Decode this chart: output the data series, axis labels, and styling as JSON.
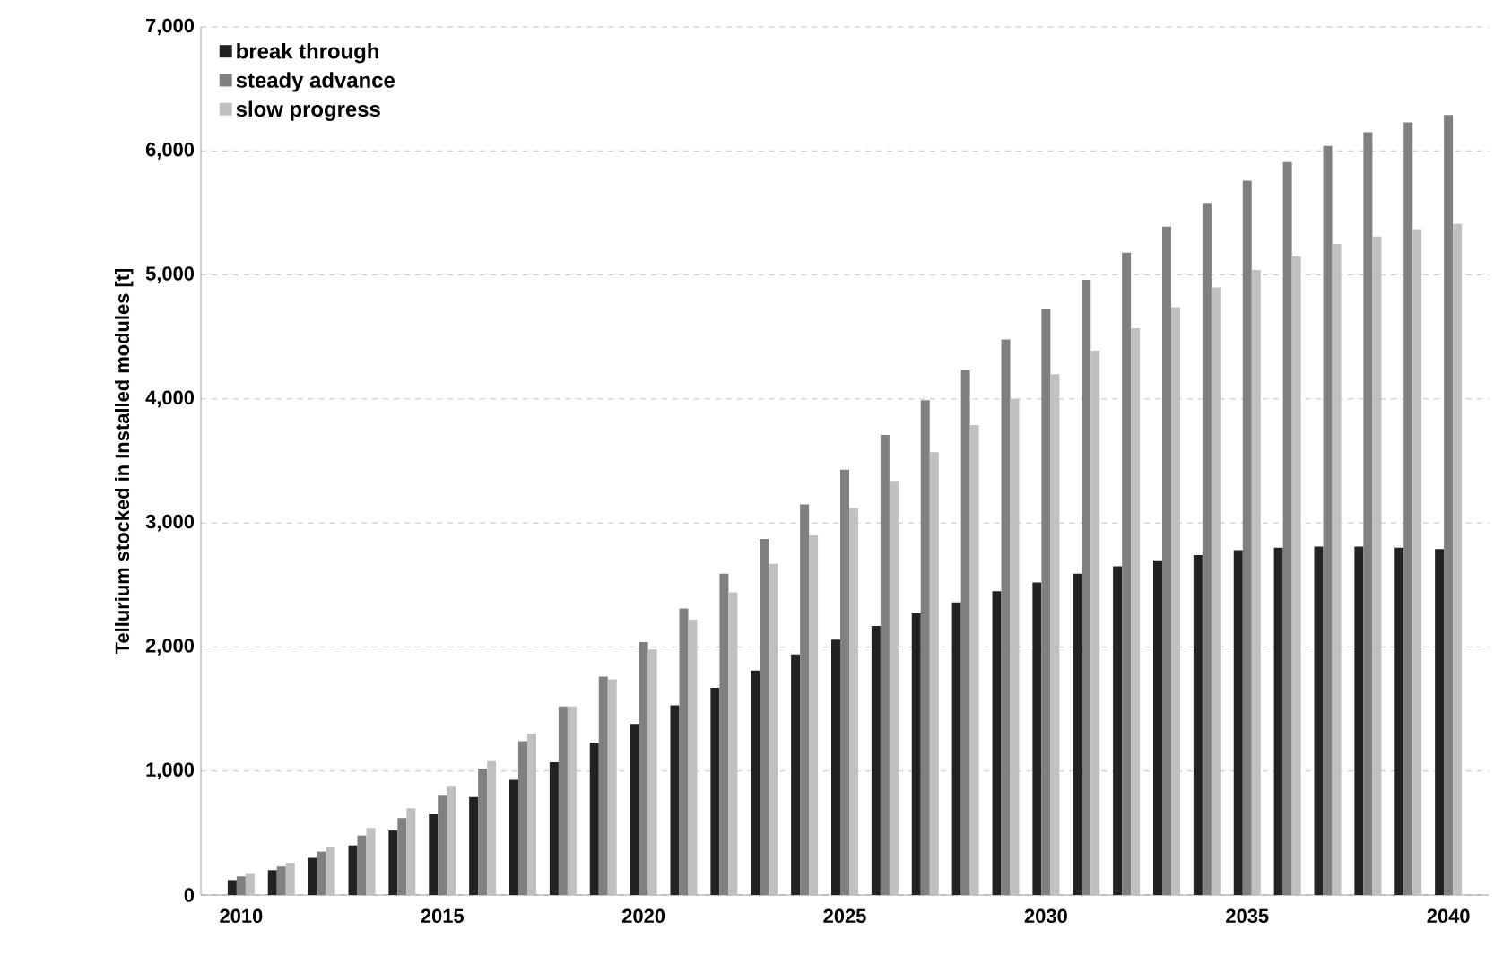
{
  "chart_data": {
    "type": "bar",
    "ylabel": "Tellurium stocked in Installed modules [t]",
    "x": [
      2010,
      2011,
      2012,
      2013,
      2014,
      2015,
      2016,
      2017,
      2018,
      2019,
      2020,
      2021,
      2022,
      2023,
      2024,
      2025,
      2026,
      2027,
      2028,
      2029,
      2030,
      2031,
      2032,
      2033,
      2034,
      2035,
      2036,
      2037,
      2038,
      2039,
      2040
    ],
    "series": [
      {
        "name": "break through",
        "color": "#222222",
        "values": [
          120,
          200,
          300,
          400,
          520,
          650,
          790,
          930,
          1070,
          1230,
          1380,
          1530,
          1670,
          1810,
          1940,
          2060,
          2170,
          2270,
          2360,
          2450,
          2520,
          2590,
          2650,
          2700,
          2740,
          2780,
          2800,
          2810,
          2810,
          2800,
          2790
        ]
      },
      {
        "name": "steady advance",
        "color": "#808080",
        "values": [
          150,
          230,
          350,
          480,
          620,
          800,
          1020,
          1240,
          1520,
          1760,
          2040,
          2310,
          2590,
          2870,
          3150,
          3430,
          3710,
          3990,
          4230,
          4480,
          4730,
          4960,
          5180,
          5390,
          5580,
          5760,
          5910,
          6040,
          6150,
          6230,
          6290
        ]
      },
      {
        "name": "slow progress",
        "color": "#c0c0c0",
        "values": [
          170,
          260,
          390,
          540,
          700,
          880,
          1080,
          1300,
          1520,
          1740,
          1980,
          2220,
          2440,
          2670,
          2900,
          3120,
          3340,
          3570,
          3790,
          4000,
          4200,
          4390,
          4570,
          4740,
          4900,
          5040,
          5150,
          5250,
          5310,
          5370,
          5410
        ]
      }
    ],
    "xlim": [
      2009,
      2041
    ],
    "xticks": [
      2010,
      2015,
      2020,
      2025,
      2030,
      2035,
      2040
    ],
    "ylim": [
      0,
      7000
    ],
    "yticks": [
      0,
      {
        "value": 1000,
        "label": "1,000"
      },
      {
        "value": 2000,
        "label": "2,000"
      },
      {
        "value": 3000,
        "label": "3,000"
      },
      {
        "value": 4000,
        "label": "4,000"
      },
      {
        "value": 5000,
        "label": "5,000"
      },
      {
        "value": 6000,
        "label": "6,000"
      },
      {
        "value": 7000,
        "label": "7,000"
      }
    ],
    "grid": "y",
    "legend": "top left"
  }
}
